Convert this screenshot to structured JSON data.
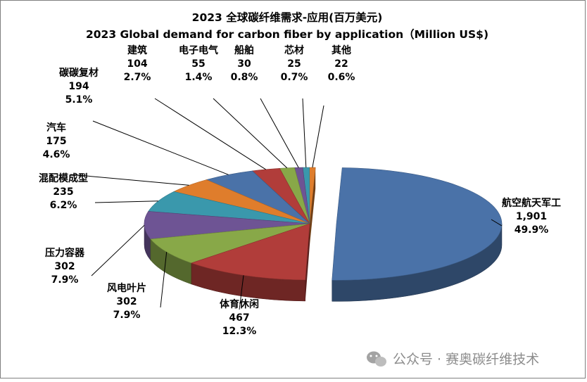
{
  "chart_data": {
    "type": "pie",
    "title": "2023 全球碳纤维需求-应用(百万美元)",
    "subtitle": "2023 Global demand for carbon fiber by application（Million US$)",
    "legend": "none",
    "slices": [
      {
        "name": "航空航天军工",
        "value": 1901,
        "value_label": "1,901",
        "percent": "49.9%",
        "color": "#4a72a8"
      },
      {
        "name": "体育休闲",
        "value": 467,
        "value_label": "467",
        "percent": "12.3%",
        "color": "#b13d3a"
      },
      {
        "name": "风电叶片",
        "value": 302,
        "value_label": "302",
        "percent": "7.9%",
        "color": "#88a848"
      },
      {
        "name": "压力容器",
        "value": 302,
        "value_label": "302",
        "percent": "7.9%",
        "color": "#6e5494"
      },
      {
        "name": "混配模成型",
        "value": 235,
        "value_label": "235",
        "percent": "6.2%",
        "color": "#3a98ac"
      },
      {
        "name": "汽车",
        "value": 175,
        "value_label": "175",
        "percent": "4.6%",
        "color": "#df7d2c"
      },
      {
        "name": "碳碳复材",
        "value": 194,
        "value_label": "194",
        "percent": "5.1%",
        "color": "#4a72a8"
      },
      {
        "name": "建筑",
        "value": 104,
        "value_label": "104",
        "percent": "2.7%",
        "color": "#b13d3a"
      },
      {
        "name": "电子电气",
        "value": 55,
        "value_label": "55",
        "percent": "1.4%",
        "color": "#88a848"
      },
      {
        "name": "船舶",
        "value": 30,
        "value_label": "30",
        "percent": "0.8%",
        "color": "#6e5494"
      },
      {
        "name": "芯材",
        "value": 25,
        "value_label": "25",
        "percent": "0.7%",
        "color": "#3a98ac"
      },
      {
        "name": "其他",
        "value": 22,
        "value_label": "22",
        "percent": "0.6%",
        "color": "#df7d2c"
      }
    ]
  },
  "watermark": "公众号 · 赛奥碳纤维技术"
}
